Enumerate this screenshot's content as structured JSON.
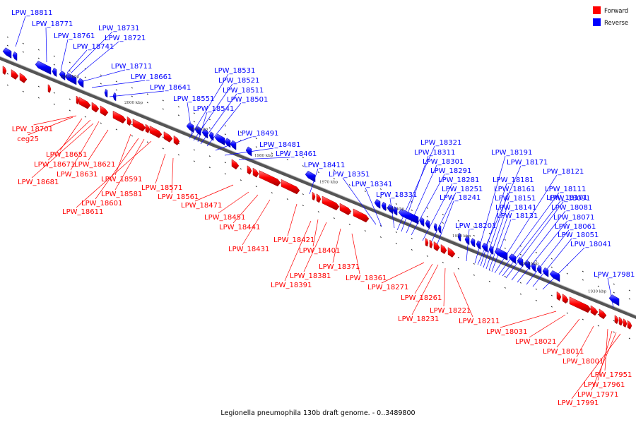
{
  "caption": "Legionella pneumophila 130b draft genome. - 0..3489800",
  "legend": [
    {
      "label": "Forward",
      "color": "#ff0000"
    },
    {
      "label": "Reverse",
      "color": "#0000ff"
    }
  ],
  "ticks": [
    "2010 kbp",
    "2000 kbp",
    "1990 kbp",
    "1980 kbp",
    "1970 kbp",
    "1960 kbp",
    "1950 kbp",
    "1940 kbp",
    "1930 kbp"
  ],
  "reverse_genes": [
    "LPW_18811",
    "LPW_18771",
    "LPW_18761",
    "LPW_18731",
    "LPW_18721",
    "LPW_18741",
    "LPW_18711",
    "LPW_18661",
    "LPW_18641",
    "LPW_18531",
    "LPW_18521",
    "LPW_18511",
    "LPW_18551",
    "LPW_18501",
    "LPW_18541",
    "LPW_18491",
    "LPW_18481",
    "LPW_18461",
    "LPW_18411",
    "LPW_18351",
    "LPW_18341",
    "LPW_18331",
    "LPW_18321",
    "LPW_18311",
    "LPW_18301",
    "LPW_18291",
    "LPW_18281",
    "LPW_18251",
    "LPW_18241",
    "LPW_18201",
    "LPW_18191",
    "LPW_18171",
    "LPW_18181",
    "LPW_18161",
    "LPW_18151",
    "LPW_18141",
    "LPW_18131",
    "LPW_18121",
    "LPW_18111",
    "LPW_18101",
    "LPW_18091",
    "LPW_18081",
    "LPW_18071",
    "LPW_18061",
    "LPW_18051",
    "LPW_18041",
    "LPW_17981"
  ],
  "forward_genes": [
    "LPW_18701",
    "ceg25",
    "LPW_18651",
    "LPW_18671",
    "LPW_18621",
    "LPW_18631",
    "LPW_18681",
    "LPW_18591",
    "LPW_18581",
    "LPW_18571",
    "LPW_18561",
    "LPW_18601",
    "LPW_18611",
    "LPW_18471",
    "LPW_18451",
    "LPW_18441",
    "LPW_18431",
    "LPW_18421",
    "LPW_18401",
    "LPW_18381",
    "LPW_18391",
    "LPW_18371",
    "LPW_18361",
    "LPW_18271",
    "LPW_18261",
    "LPW_18231",
    "LPW_18221",
    "LPW_18211",
    "LPW_18031",
    "LPW_18021",
    "LPW_18011",
    "LPW_18001",
    "LPW_17951",
    "LPW_17961",
    "LPW_17971",
    "LPW_17991"
  ]
}
